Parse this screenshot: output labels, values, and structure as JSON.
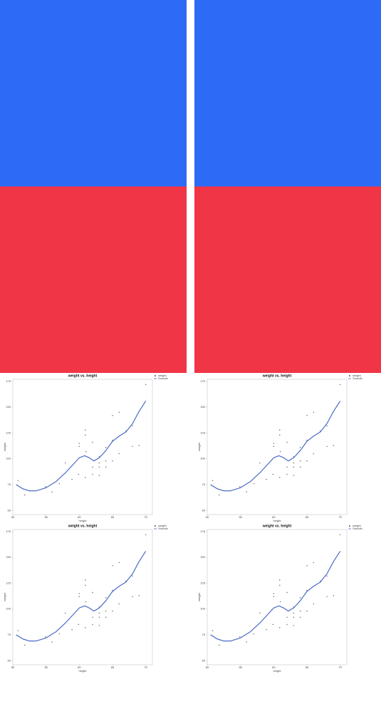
{
  "panels": [
    {
      "color": "#2d6af6"
    },
    {
      "color": "#2d6af6"
    },
    {
      "color": "#f03547"
    },
    {
      "color": "#f03547"
    }
  ],
  "chart_data": [
    {
      "type": "scatter",
      "title": "weight vs. height",
      "x_label": "height",
      "y_label": "weight",
      "xlim": [
        50,
        71
      ],
      "ylim": [
        46,
        177
      ],
      "xticks": [
        50,
        55,
        60,
        65,
        70
      ],
      "yticks": [
        50,
        75,
        100,
        125,
        150,
        175
      ],
      "series": [
        {
          "name": "weight",
          "color": "#222222",
          "x": [
            50.8,
            51.8,
            54.9,
            55.9,
            57,
            57.9,
            58.9,
            59.9,
            60,
            60,
            60.9,
            60.9,
            60.9,
            61,
            62,
            62,
            62,
            63,
            63,
            63,
            63,
            64,
            64,
            64,
            65,
            65,
            65,
            66,
            66,
            67,
            68,
            68,
            69,
            70
          ],
          "values": [
            79,
            65,
            73,
            68,
            76,
            96,
            80,
            85,
            115,
            112,
            128,
            123,
            82,
            107,
            116,
            92,
            85,
            102,
            96,
            84,
            92,
            111,
            98,
            92,
            142,
            118,
            98,
            145,
            105,
            127,
            132,
            112,
            113,
            172
          ]
        },
        {
          "name": "Smooth",
          "color": "#4a6bc8",
          "x": [
            50.5,
            51.5,
            52.5,
            53.5,
            55,
            56.5,
            58,
            59,
            60,
            60.8,
            61.5,
            62.2,
            63,
            64,
            65,
            66,
            67,
            68,
            69,
            70
          ],
          "values": [
            75,
            71,
            69,
            69,
            72,
            78,
            87,
            94,
            101,
            103,
            101,
            98,
            101,
            108,
            117,
            122,
            126,
            134,
            146,
            156
          ]
        }
      ]
    },
    {
      "type": "scatter",
      "title": "weight vs. height",
      "x_label": "height",
      "y_label": "weight",
      "xlim": [
        50,
        71
      ],
      "ylim": [
        46,
        177
      ],
      "xticks": [
        50,
        55,
        60,
        65,
        70
      ],
      "yticks": [
        50,
        75,
        100,
        125,
        150,
        175
      ],
      "series": [
        {
          "name": "weight",
          "color": "#222222",
          "x": [
            50.8,
            51.8,
            54.9,
            55.9,
            57,
            57.9,
            58.9,
            59.9,
            60,
            60,
            60.9,
            60.9,
            60.9,
            61,
            62,
            62,
            62,
            63,
            63,
            63,
            63,
            64,
            64,
            64,
            65,
            65,
            65,
            66,
            66,
            67,
            68,
            68,
            69,
            70
          ],
          "values": [
            79,
            65,
            73,
            68,
            76,
            96,
            80,
            85,
            115,
            112,
            128,
            123,
            82,
            107,
            116,
            92,
            85,
            102,
            96,
            84,
            92,
            111,
            98,
            92,
            142,
            118,
            98,
            145,
            105,
            127,
            132,
            112,
            113,
            172
          ]
        },
        {
          "name": "Smooth",
          "color": "#4a6bc8",
          "x": [
            50.5,
            51.5,
            52.5,
            53.5,
            55,
            56.5,
            58,
            59,
            60,
            60.8,
            61.5,
            62.2,
            63,
            64,
            65,
            66,
            67,
            68,
            69,
            70
          ],
          "values": [
            75,
            71,
            69,
            69,
            72,
            78,
            87,
            94,
            101,
            103,
            101,
            98,
            101,
            108,
            117,
            122,
            126,
            134,
            146,
            156
          ]
        }
      ]
    },
    {
      "type": "scatter",
      "title": "weight vs. height",
      "x_label": "height",
      "y_label": "weight",
      "xlim": [
        50,
        71
      ],
      "ylim": [
        46,
        177
      ],
      "xticks": [
        50,
        55,
        60,
        65,
        70
      ],
      "yticks": [
        50,
        75,
        100,
        125,
        150,
        175
      ],
      "series": [
        {
          "name": "weight",
          "color": "#222222",
          "x": [
            50.8,
            51.8,
            54.9,
            55.9,
            57,
            57.9,
            58.9,
            59.9,
            60,
            60,
            60.9,
            60.9,
            60.9,
            61,
            62,
            62,
            62,
            63,
            63,
            63,
            63,
            64,
            64,
            64,
            65,
            65,
            65,
            66,
            66,
            67,
            68,
            68,
            69,
            70
          ],
          "values": [
            79,
            65,
            73,
            68,
            76,
            96,
            80,
            85,
            115,
            112,
            128,
            123,
            82,
            107,
            116,
            92,
            85,
            102,
            96,
            84,
            92,
            111,
            98,
            92,
            142,
            118,
            98,
            145,
            105,
            127,
            132,
            112,
            113,
            172
          ]
        },
        {
          "name": "Smooth",
          "color": "#4a6bc8",
          "x": [
            50.5,
            51.5,
            52.5,
            53.5,
            55,
            56.5,
            58,
            59,
            60,
            60.8,
            61.5,
            62.2,
            63,
            64,
            65,
            66,
            67,
            68,
            69,
            70
          ],
          "values": [
            75,
            71,
            69,
            69,
            72,
            78,
            87,
            94,
            101,
            103,
            101,
            98,
            101,
            108,
            117,
            122,
            126,
            134,
            146,
            156
          ]
        }
      ]
    },
    {
      "type": "scatter",
      "title": "weight vs. height",
      "x_label": "height",
      "y_label": "weight",
      "xlim": [
        50,
        71
      ],
      "ylim": [
        46,
        177
      ],
      "xticks": [
        50,
        55,
        60,
        65,
        70
      ],
      "yticks": [
        50,
        75,
        100,
        125,
        150,
        175
      ],
      "series": [
        {
          "name": "weight",
          "color": "#222222",
          "x": [
            50.8,
            51.8,
            54.9,
            55.9,
            57,
            57.9,
            58.9,
            59.9,
            60,
            60,
            60.9,
            60.9,
            60.9,
            61,
            62,
            62,
            62,
            63,
            63,
            63,
            63,
            64,
            64,
            64,
            65,
            65,
            65,
            66,
            66,
            67,
            68,
            68,
            69,
            70
          ],
          "values": [
            79,
            65,
            73,
            68,
            76,
            96,
            80,
            85,
            115,
            112,
            128,
            123,
            82,
            107,
            116,
            92,
            85,
            102,
            96,
            84,
            92,
            111,
            98,
            92,
            142,
            118,
            98,
            145,
            105,
            127,
            132,
            112,
            113,
            172
          ]
        },
        {
          "name": "Smooth",
          "color": "#4a6bc8",
          "x": [
            50.5,
            51.5,
            52.5,
            53.5,
            55,
            56.5,
            58,
            59,
            60,
            60.8,
            61.5,
            62.2,
            63,
            64,
            65,
            66,
            67,
            68,
            69,
            70
          ],
          "values": [
            75,
            71,
            69,
            69,
            72,
            78,
            87,
            94,
            101,
            103,
            101,
            98,
            101,
            108,
            117,
            122,
            126,
            134,
            146,
            156
          ]
        }
      ]
    }
  ]
}
